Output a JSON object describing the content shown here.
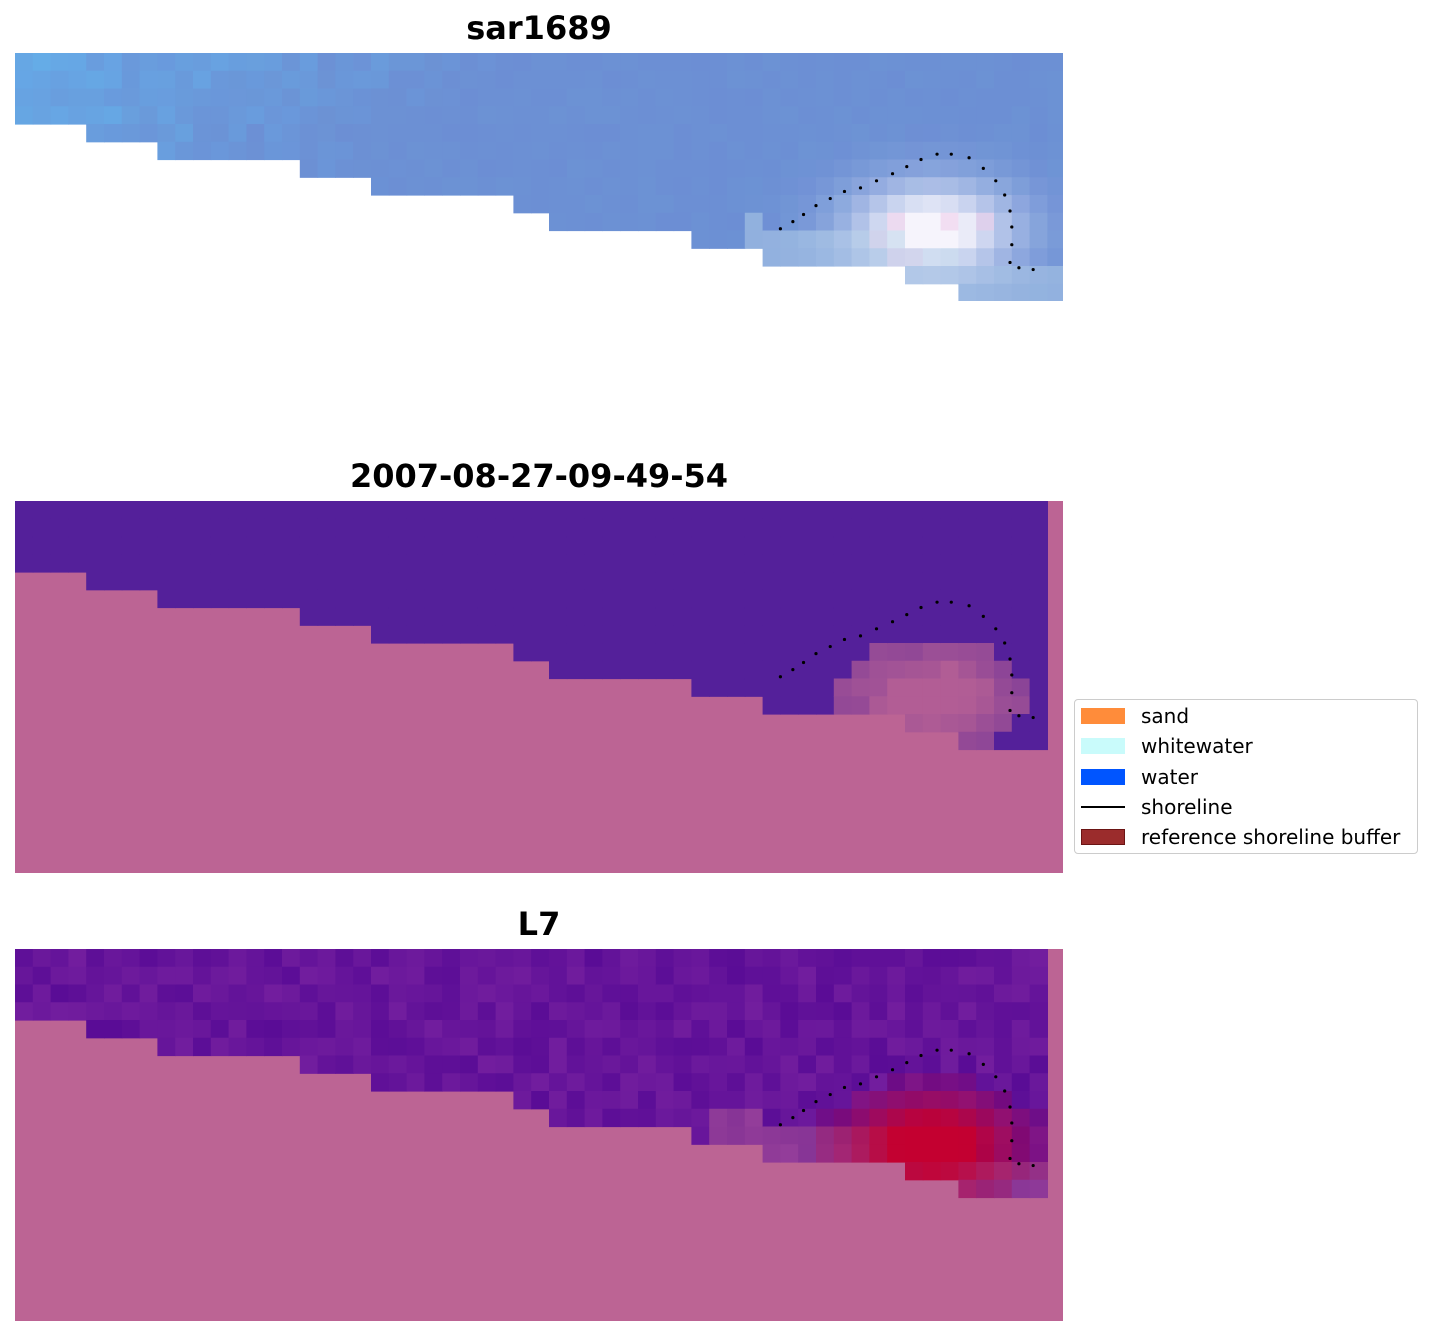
{
  "panels": [
    {
      "title": "sar1689",
      "mode": "rgb"
    },
    {
      "title": "2007-08-27-09-49-54",
      "mode": "class"
    },
    {
      "title": "L7",
      "mode": "index"
    }
  ],
  "legend": {
    "items": [
      {
        "label": "sand",
        "color": "#ff8c3a",
        "kind": "patch"
      },
      {
        "label": "whitewater",
        "color": "#c9fbfb",
        "kind": "patch"
      },
      {
        "label": "water",
        "color": "#0055ff",
        "kind": "patch"
      },
      {
        "label": "shoreline",
        "color": "#000000",
        "kind": "line"
      },
      {
        "label": "reference shoreline buffer",
        "color": "#9b2c2c",
        "kind": "patch"
      }
    ]
  },
  "colors": {
    "land_mask": "#bc6494",
    "water_class": "#54209a",
    "rgb_sea": "#6c92d4",
    "rgb_sky": "#63b5ee",
    "index_dark": "#5a0c96",
    "index_peak": "#c40030",
    "shoreline_points": "#000000"
  }
}
